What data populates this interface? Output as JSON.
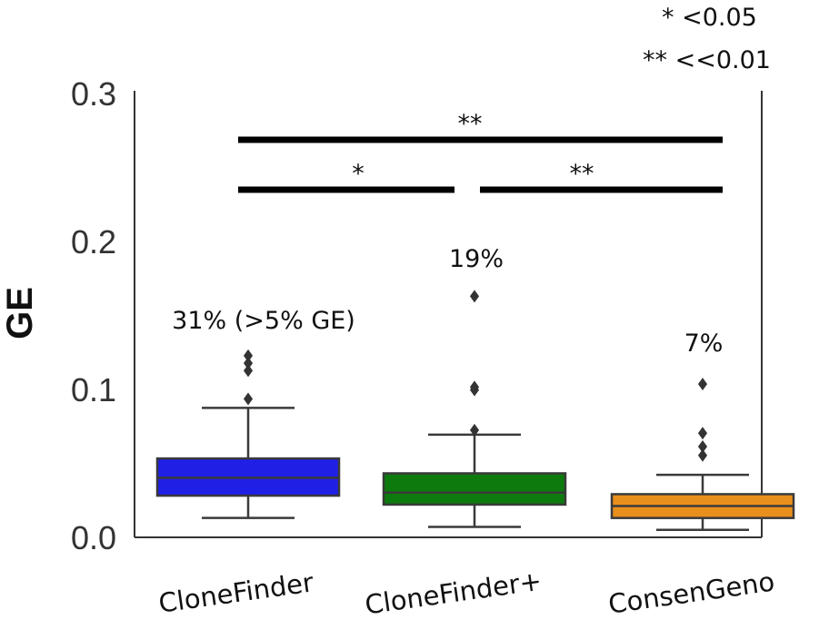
{
  "chart_data": {
    "type": "box",
    "ylabel": "GE",
    "ylim": [
      0,
      0.3
    ],
    "yticks": [
      0.0,
      0.1,
      0.2,
      0.3
    ],
    "ytick_labels": [
      "0.0",
      "0.1",
      "0.2",
      "0.3"
    ],
    "categories": [
      "CloneFinder",
      "CloneFinder+",
      "ConsenGeno"
    ],
    "series": [
      {
        "name": "CloneFinder",
        "color": "#1f1fe6",
        "whisker_low": 0.013,
        "q1": 0.028,
        "median": 0.04,
        "q3": 0.053,
        "whisker_high": 0.087,
        "outliers": [
          0.093,
          0.112,
          0.117,
          0.122
        ],
        "annotation": "31% (>5% GE)"
      },
      {
        "name": "CloneFinder+",
        "color": "#0d7a0d",
        "whisker_low": 0.007,
        "q1": 0.022,
        "median": 0.03,
        "q3": 0.043,
        "whisker_high": 0.069,
        "outliers": [
          0.072,
          0.099,
          0.101,
          0.162
        ],
        "annotation": "19%"
      },
      {
        "name": "ConsenGeno",
        "color": "#e8901c",
        "whisker_low": 0.005,
        "q1": 0.013,
        "median": 0.021,
        "q3": 0.029,
        "whisker_high": 0.042,
        "outliers": [
          0.055,
          0.061,
          0.07,
          0.103
        ],
        "annotation": "7%"
      }
    ],
    "significance": [
      {
        "from": "CloneFinder",
        "to": "ConsenGeno",
        "label": "**"
      },
      {
        "from": "CloneFinder",
        "to": "CloneFinder+",
        "label": "*"
      },
      {
        "from": "CloneFinder+",
        "to": "ConsenGeno",
        "label": "**"
      }
    ],
    "legend": [
      "* <0.05",
      "** <<0.01"
    ]
  }
}
